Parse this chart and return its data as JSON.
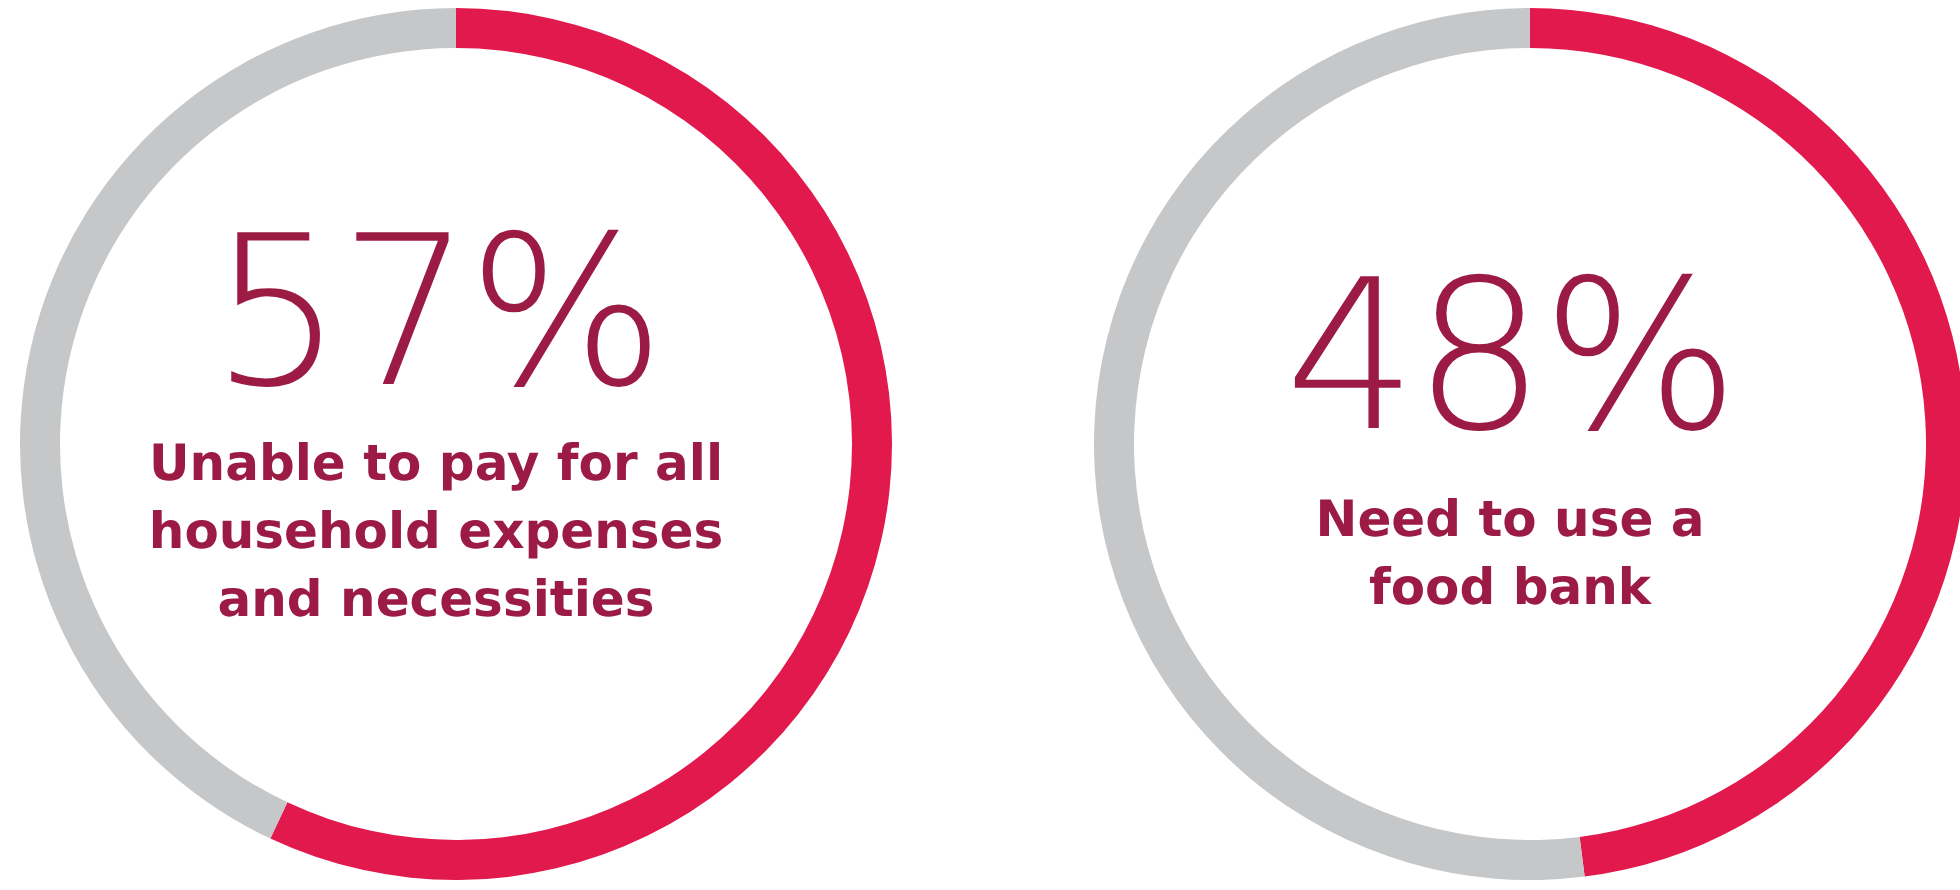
{
  "chart_data": [
    {
      "type": "donut",
      "title": "Unable to pay for all\nhousehold expenses\nand necessities",
      "categories": [
        null,
        null
      ],
      "values": [
        57,
        43
      ],
      "colors": [
        "#e2194c",
        "#c6c7c9"
      ],
      "value_labels": [
        "57%",
        null
      ]
    },
    {
      "type": "donut",
      "title": "Need to use a\nfood bank",
      "categories": [
        null,
        null
      ],
      "values": [
        48,
        52
      ],
      "colors": [
        "#e2194c",
        "#c6c7c9"
      ],
      "value_labels": [
        "48%",
        null
      ]
    }
  ]
}
